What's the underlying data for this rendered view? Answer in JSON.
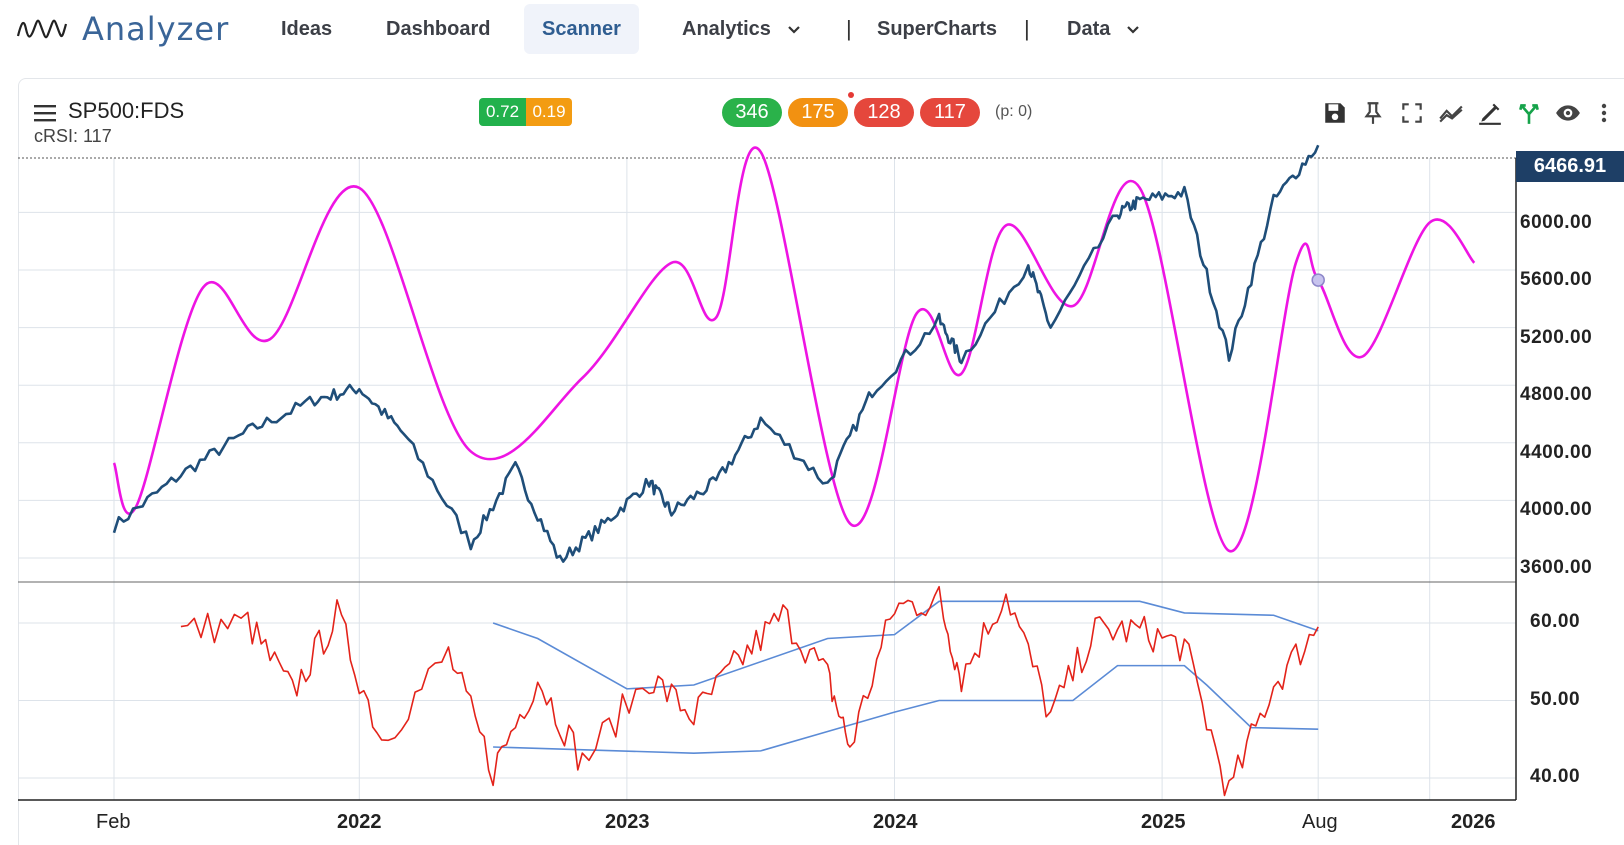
{
  "app": {
    "title": "Analyzer"
  },
  "nav": {
    "items": [
      "Ideas",
      "Dashboard",
      "Scanner",
      "Analytics",
      "SuperCharts",
      "Data"
    ],
    "active": "Scanner"
  },
  "chart_header": {
    "symbol": "SP500:FDS",
    "indicator": "cRSI: 117",
    "small_badges": [
      {
        "value": "0.72",
        "color": "#22b14c"
      },
      {
        "value": "0.19",
        "color": "#f39c12"
      }
    ],
    "counts": [
      {
        "value": "346",
        "color": "#2ab24a"
      },
      {
        "value": "175",
        "color": "#f29111"
      },
      {
        "value": "128",
        "color": "#e5473c"
      },
      {
        "value": "117",
        "color": "#e5473c"
      }
    ],
    "p_value": "(p: 0)"
  },
  "toolbar_icons": [
    "save-icon",
    "pin-icon",
    "fullscreen-icon",
    "trend-icon",
    "draw-icon",
    "fork-icon",
    "eye-icon",
    "more-icon"
  ],
  "colors": {
    "price": "#1f4e79",
    "cycle": "#ee14e3",
    "rsi": "#e3231a",
    "bands": "#5b8bd6",
    "grid": "#dde3ea"
  },
  "chart_data": [
    {
      "type": "line",
      "last_value_label": "6466.91",
      "y_axis": {
        "ticks": [
          "6000.00",
          "5600.00",
          "5200.00",
          "4800.00",
          "4400.00",
          "4000.00",
          "3600.00"
        ],
        "range": [
          3600,
          6466.91
        ]
      },
      "x_axis": {
        "ticks": [
          "Feb",
          "2022",
          "2023",
          "2024",
          "2025",
          "Aug",
          "2026"
        ],
        "bold": [
          false,
          true,
          true,
          true,
          true,
          false,
          true
        ]
      },
      "series": [
        {
          "values_by_date": [
            [
              "2021-02",
              3820
            ],
            [
              "2021-05",
              4180
            ],
            [
              "2021-08",
              4480
            ],
            [
              "2021-11",
              4700
            ],
            [
              "2022-01",
              4780
            ],
            [
              "2022-03",
              4460
            ],
            [
              "2022-06",
              3700
            ],
            [
              "2022-08",
              4230
            ],
            [
              "2022-10",
              3580
            ],
            [
              "2022-12",
              3840
            ],
            [
              "2023-02",
              4130
            ],
            [
              "2023-03",
              3920
            ],
            [
              "2023-05",
              4130
            ],
            [
              "2023-07",
              4560
            ],
            [
              "2023-10",
              4110
            ],
            [
              "2023-12",
              4760
            ],
            [
              "2024-03",
              5250
            ],
            [
              "2024-04",
              4980
            ],
            [
              "2024-07",
              5640
            ],
            [
              "2024-08",
              5200
            ],
            [
              "2024-11",
              5990
            ],
            [
              "2024-12",
              6080
            ],
            [
              "2025-02",
              6140
            ],
            [
              "2025-04",
              5000
            ],
            [
              "2025-06",
              6080
            ],
            [
              "2025-08",
              6466.91
            ]
          ]
        },
        {
          "values_by_date": [
            [
              "2021-02",
              4260
            ],
            [
              "2021-03",
              3960
            ],
            [
              "2021-06",
              5480
            ],
            [
              "2021-09",
              5120
            ],
            [
              "2022-01",
              6170
            ],
            [
              "2022-06",
              4340
            ],
            [
              "2022-11",
              4850
            ],
            [
              "2023-03",
              5650
            ],
            [
              "2023-05",
              5270
            ],
            [
              "2023-07",
              6420
            ],
            [
              "2023-11",
              3840
            ],
            [
              "2024-02",
              5300
            ],
            [
              "2024-04",
              4880
            ],
            [
              "2024-06",
              5910
            ],
            [
              "2024-09",
              5350
            ],
            [
              "2024-12",
              6170
            ],
            [
              "2025-04",
              3650
            ],
            [
              "2025-07",
              5650
            ],
            [
              "2025-08",
              5530
            ],
            [
              "2025-10",
              5000
            ],
            [
              "2026-01",
              5930
            ],
            [
              "2026-03",
              5650
            ]
          ]
        }
      ]
    },
    {
      "type": "line",
      "y_axis": {
        "ticks": [
          "60.00",
          "50.00",
          "40.00"
        ],
        "range": [
          38,
          66
        ]
      },
      "series": [
        {
          "values_by_date": [
            [
              "2021-05",
              59
            ],
            [
              "2021-08",
              60
            ],
            [
              "2021-10",
              51
            ],
            [
              "2021-12",
              61
            ],
            [
              "2022-02",
              45
            ],
            [
              "2022-05",
              56
            ],
            [
              "2022-07",
              41
            ],
            [
              "2022-09",
              53
            ],
            [
              "2022-11",
              42
            ],
            [
              "2023-02",
              53
            ],
            [
              "2023-04",
              48
            ],
            [
              "2023-06",
              55
            ],
            [
              "2023-08",
              61
            ],
            [
              "2023-10",
              53
            ],
            [
              "2023-11",
              44
            ],
            [
              "2024-01",
              62
            ],
            [
              "2024-03",
              63
            ],
            [
              "2024-04",
              53
            ],
            [
              "2024-06",
              64
            ],
            [
              "2024-08",
              48
            ],
            [
              "2024-10",
              59
            ],
            [
              "2024-12",
              59
            ],
            [
              "2025-02",
              57
            ],
            [
              "2025-04",
              38
            ],
            [
              "2025-06",
              52
            ],
            [
              "2025-08",
              59.5
            ]
          ]
        },
        {
          "values_by_date": [
            [
              "2022-07",
              60
            ],
            [
              "2022-09",
              58
            ],
            [
              "2023-01",
              51.5
            ],
            [
              "2023-04",
              52
            ],
            [
              "2023-10",
              58
            ],
            [
              "2024-01",
              58.5
            ],
            [
              "2024-03",
              62.8
            ],
            [
              "2024-12",
              62.8
            ],
            [
              "2025-02",
              61.3
            ],
            [
              "2025-06",
              61
            ],
            [
              "2025-08",
              59
            ]
          ]
        },
        {
          "values_by_date": [
            [
              "2022-07",
              44
            ],
            [
              "2023-04",
              43.2
            ],
            [
              "2023-07",
              43.5
            ],
            [
              "2023-10",
              46
            ],
            [
              "2024-01",
              48.5
            ],
            [
              "2024-03",
              50
            ],
            [
              "2024-09",
              50
            ],
            [
              "2024-11",
              54.5
            ],
            [
              "2025-02",
              54.5
            ],
            [
              "2025-03",
              52
            ],
            [
              "2025-05",
              46.5
            ],
            [
              "2025-08",
              46.3
            ]
          ]
        }
      ]
    }
  ]
}
